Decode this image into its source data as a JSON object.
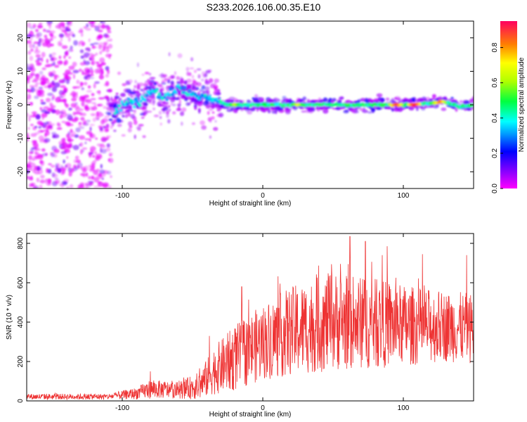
{
  "title": "S233.2026.106.00.35.E10",
  "chart_data": [
    {
      "type": "heatmap",
      "xlabel": "Height of straight line (km)",
      "ylabel": "Frequency (Hz)",
      "xlim": [
        -168,
        150
      ],
      "ylim": [
        -25,
        25
      ],
      "xticks": [
        -100,
        0,
        100
      ],
      "yticks": [
        -20,
        -10,
        0,
        10,
        20
      ],
      "colorbar": {
        "label": "Normalized spectral amplitude",
        "range": [
          0,
          0.95
        ],
        "ticks": [
          0.0,
          0.2,
          0.4,
          0.6,
          0.8
        ],
        "colormap": "rainbow"
      },
      "ridge": [
        {
          "x": -105,
          "y": -1.5
        },
        {
          "x": -95,
          "y": 1
        },
        {
          "x": -88,
          "y": 0.5
        },
        {
          "x": -80,
          "y": 4.5
        },
        {
          "x": -70,
          "y": 2
        },
        {
          "x": -60,
          "y": 5
        },
        {
          "x": -50,
          "y": 3
        },
        {
          "x": -40,
          "y": 2.5
        },
        {
          "x": -32,
          "y": 1
        },
        {
          "x": -25,
          "y": 0
        },
        {
          "x": 0,
          "y": 0
        },
        {
          "x": 50,
          "y": 0
        },
        {
          "x": 100,
          "y": 0
        },
        {
          "x": 120,
          "y": 0.5
        },
        {
          "x": 128,
          "y": 1
        },
        {
          "x": 140,
          "y": -0.5
        },
        {
          "x": 150,
          "y": 0
        }
      ],
      "peaks": [
        {
          "x": -20,
          "y": 0,
          "amplitude": 0.65
        },
        {
          "x": 25,
          "y": 0,
          "amplitude": 0.7
        },
        {
          "x": 95,
          "y": 0,
          "amplitude": 0.9
        },
        {
          "x": 108,
          "y": 0,
          "amplitude": 0.95
        },
        {
          "x": 126,
          "y": 0.5,
          "amplitude": 0.85
        }
      ]
    },
    {
      "type": "line",
      "xlabel": "Height of straight line (km)",
      "ylabel": "SNR (10 * v/v)",
      "xlim": [
        -168,
        150
      ],
      "ylim": [
        0,
        850
      ],
      "xticks": [
        -100,
        0,
        100
      ],
      "yticks": [
        0,
        200,
        400,
        600,
        800
      ],
      "color": "#ee3333",
      "envelope": [
        {
          "x": -168,
          "base": 20,
          "spread": 25
        },
        {
          "x": -110,
          "base": 20,
          "spread": 25
        },
        {
          "x": -90,
          "base": 35,
          "spread": 50
        },
        {
          "x": -80,
          "base": 55,
          "spread": 80
        },
        {
          "x": -60,
          "base": 50,
          "spread": 70
        },
        {
          "x": -45,
          "base": 70,
          "spread": 120
        },
        {
          "x": -35,
          "base": 140,
          "spread": 200
        },
        {
          "x": -20,
          "base": 200,
          "spread": 280
        },
        {
          "x": 0,
          "base": 280,
          "spread": 320
        },
        {
          "x": 20,
          "base": 330,
          "spread": 380
        },
        {
          "x": 50,
          "base": 380,
          "spread": 420
        },
        {
          "x": 80,
          "base": 370,
          "spread": 380
        },
        {
          "x": 110,
          "base": 360,
          "spread": 330
        },
        {
          "x": 130,
          "base": 360,
          "spread": 300
        },
        {
          "x": 150,
          "base": 350,
          "spread": 300
        }
      ],
      "notable_spikes": [
        {
          "x": -80,
          "y": 150
        },
        {
          "x": -15,
          "y": 580
        },
        {
          "x": -38,
          "y": 330
        },
        {
          "x": 62,
          "y": 835
        },
        {
          "x": 73,
          "y": 810
        },
        {
          "x": 85,
          "y": 740
        },
        {
          "x": 145,
          "y": 740
        }
      ]
    }
  ]
}
